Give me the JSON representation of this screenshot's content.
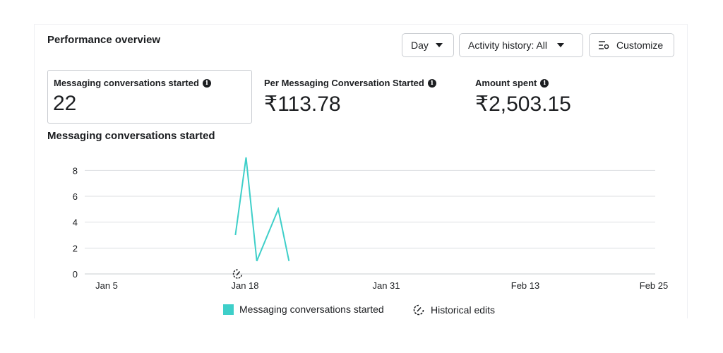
{
  "header": {
    "title": "Performance overview",
    "day_label": "Day",
    "activity_label": "Activity history: All",
    "customize_label": "Customize"
  },
  "metrics": [
    {
      "label": "Messaging conversations started",
      "value": "22"
    },
    {
      "label": "Per Messaging Conversation Started",
      "value": "₹113.78"
    },
    {
      "label": "Amount spent",
      "value": "₹2,503.15"
    }
  ],
  "chart_title": "Messaging conversations started",
  "chart_data": {
    "type": "line",
    "title": "Messaging conversations started",
    "x_tick_labels": [
      "Jan 5",
      "Jan 18",
      "Jan 31",
      "Feb 13",
      "Feb 25"
    ],
    "y_ticks": [
      0,
      2,
      4,
      6,
      8
    ],
    "ylim": [
      0,
      9
    ],
    "grid": true,
    "series": [
      {
        "name": "Messaging conversations started",
        "color": "#3ecfc9",
        "x": [
          "Jan 17",
          "Jan 18",
          "Jan 19",
          "Jan 20",
          "Jan 21",
          "Jan 22"
        ],
        "values": [
          3,
          9,
          1,
          3,
          5,
          1
        ]
      }
    ],
    "historical_edit_markers": [
      "Jan 18"
    ],
    "legend_position": "bottom"
  },
  "legend": {
    "series_label": "Messaging conversations started",
    "edits_label": "Historical edits"
  },
  "colors": {
    "line": "#3ecfc9",
    "grid": "#dddfe2"
  },
  "icons": {
    "caret": "caret-down-icon",
    "customize": "settings-sliders-icon",
    "info": "info-icon",
    "edits": "historical-edits-icon"
  }
}
